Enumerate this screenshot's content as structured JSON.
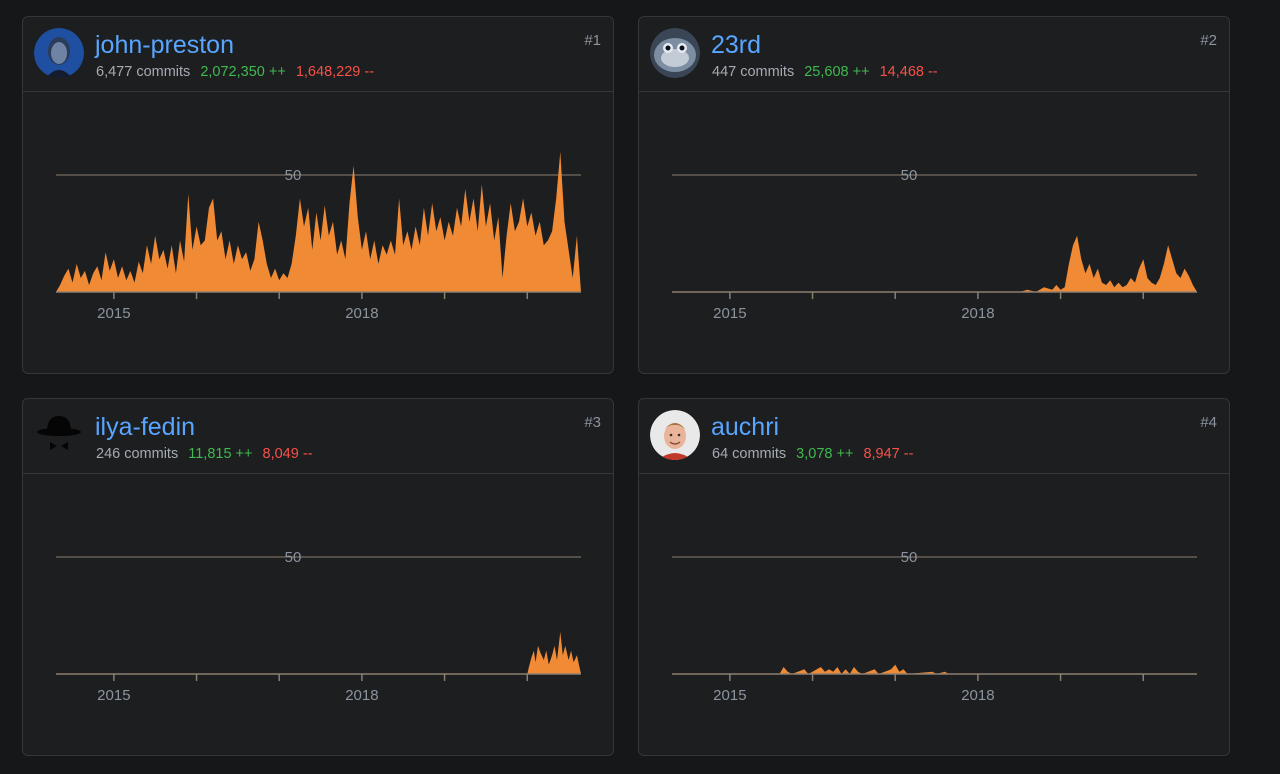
{
  "cards": [
    {
      "rank": "#1",
      "username": "john-preston",
      "commits": "6,477 commits",
      "additions": "2,072,350 ++",
      "deletions": "1,648,229 --",
      "avatar": "profile-photo-icon",
      "chart_data": {
        "type": "area",
        "y_gridline_label": "50",
        "x_tick_labels": [
          "2015",
          "2018"
        ],
        "start": 2014.3,
        "end": 2020.65,
        "ylim": [
          0,
          64
        ],
        "points": [
          [
            2014.3,
            0
          ],
          [
            2014.35,
            3
          ],
          [
            2014.4,
            7
          ],
          [
            2014.45,
            10
          ],
          [
            2014.5,
            4
          ],
          [
            2014.55,
            12
          ],
          [
            2014.6,
            6
          ],
          [
            2014.65,
            9
          ],
          [
            2014.7,
            3
          ],
          [
            2014.75,
            8
          ],
          [
            2014.8,
            11
          ],
          [
            2014.85,
            5
          ],
          [
            2014.9,
            17
          ],
          [
            2014.95,
            9
          ],
          [
            2015.0,
            14
          ],
          [
            2015.05,
            6
          ],
          [
            2015.1,
            11
          ],
          [
            2015.15,
            5
          ],
          [
            2015.2,
            9
          ],
          [
            2015.25,
            4
          ],
          [
            2015.3,
            13
          ],
          [
            2015.35,
            8
          ],
          [
            2015.4,
            20
          ],
          [
            2015.45,
            12
          ],
          [
            2015.5,
            24
          ],
          [
            2015.55,
            14
          ],
          [
            2015.6,
            18
          ],
          [
            2015.65,
            10
          ],
          [
            2015.7,
            20
          ],
          [
            2015.75,
            8
          ],
          [
            2015.8,
            22
          ],
          [
            2015.85,
            13
          ],
          [
            2015.9,
            42
          ],
          [
            2015.95,
            18
          ],
          [
            2016.0,
            28
          ],
          [
            2016.05,
            20
          ],
          [
            2016.1,
            22
          ],
          [
            2016.15,
            36
          ],
          [
            2016.2,
            40
          ],
          [
            2016.25,
            22
          ],
          [
            2016.3,
            26
          ],
          [
            2016.35,
            14
          ],
          [
            2016.4,
            22
          ],
          [
            2016.45,
            12
          ],
          [
            2016.5,
            20
          ],
          [
            2016.55,
            14
          ],
          [
            2016.6,
            17
          ],
          [
            2016.65,
            9
          ],
          [
            2016.7,
            14
          ],
          [
            2016.75,
            30
          ],
          [
            2016.8,
            22
          ],
          [
            2016.85,
            12
          ],
          [
            2016.9,
            6
          ],
          [
            2016.95,
            10
          ],
          [
            2017.0,
            5
          ],
          [
            2017.05,
            8
          ],
          [
            2017.1,
            6
          ],
          [
            2017.15,
            12
          ],
          [
            2017.2,
            24
          ],
          [
            2017.25,
            40
          ],
          [
            2017.3,
            28
          ],
          [
            2017.35,
            36
          ],
          [
            2017.4,
            18
          ],
          [
            2017.45,
            34
          ],
          [
            2017.5,
            22
          ],
          [
            2017.55,
            37
          ],
          [
            2017.6,
            24
          ],
          [
            2017.65,
            30
          ],
          [
            2017.7,
            16
          ],
          [
            2017.75,
            22
          ],
          [
            2017.8,
            14
          ],
          [
            2017.85,
            38
          ],
          [
            2017.9,
            54
          ],
          [
            2017.95,
            32
          ],
          [
            2018.0,
            18
          ],
          [
            2018.05,
            26
          ],
          [
            2018.1,
            14
          ],
          [
            2018.15,
            22
          ],
          [
            2018.2,
            12
          ],
          [
            2018.25,
            20
          ],
          [
            2018.3,
            16
          ],
          [
            2018.35,
            22
          ],
          [
            2018.4,
            16
          ],
          [
            2018.45,
            40
          ],
          [
            2018.5,
            20
          ],
          [
            2018.55,
            26
          ],
          [
            2018.6,
            18
          ],
          [
            2018.65,
            28
          ],
          [
            2018.7,
            20
          ],
          [
            2018.75,
            36
          ],
          [
            2018.8,
            24
          ],
          [
            2018.85,
            38
          ],
          [
            2018.9,
            26
          ],
          [
            2018.95,
            32
          ],
          [
            2019.0,
            22
          ],
          [
            2019.05,
            30
          ],
          [
            2019.1,
            24
          ],
          [
            2019.15,
            36
          ],
          [
            2019.2,
            28
          ],
          [
            2019.25,
            44
          ],
          [
            2019.3,
            30
          ],
          [
            2019.35,
            40
          ],
          [
            2019.4,
            26
          ],
          [
            2019.45,
            46
          ],
          [
            2019.5,
            28
          ],
          [
            2019.55,
            38
          ],
          [
            2019.6,
            22
          ],
          [
            2019.65,
            32
          ],
          [
            2019.7,
            6
          ],
          [
            2019.75,
            24
          ],
          [
            2019.8,
            38
          ],
          [
            2019.85,
            26
          ],
          [
            2019.9,
            30
          ],
          [
            2019.95,
            40
          ],
          [
            2020.0,
            28
          ],
          [
            2020.05,
            34
          ],
          [
            2020.1,
            24
          ],
          [
            2020.15,
            30
          ],
          [
            2020.2,
            20
          ],
          [
            2020.25,
            22
          ],
          [
            2020.3,
            26
          ],
          [
            2020.35,
            40
          ],
          [
            2020.4,
            60
          ],
          [
            2020.45,
            30
          ],
          [
            2020.5,
            18
          ],
          [
            2020.55,
            6
          ],
          [
            2020.6,
            24
          ],
          [
            2020.65,
            0
          ]
        ]
      }
    },
    {
      "rank": "#2",
      "username": "23rd",
      "commits": "447 commits",
      "additions": "25,608 ++",
      "deletions": "14,468 --",
      "avatar": "blue-creature-icon",
      "chart_data": {
        "type": "area",
        "y_gridline_label": "50",
        "x_tick_labels": [
          "2015",
          "2018"
        ],
        "start": 2014.3,
        "end": 2020.65,
        "ylim": [
          0,
          64
        ],
        "points": [
          [
            2014.3,
            0
          ],
          [
            2018.5,
            0
          ],
          [
            2018.6,
            1
          ],
          [
            2018.7,
            0
          ],
          [
            2018.8,
            2
          ],
          [
            2018.9,
            1
          ],
          [
            2018.95,
            3
          ],
          [
            2019.0,
            1
          ],
          [
            2019.05,
            2
          ],
          [
            2019.1,
            12
          ],
          [
            2019.15,
            20
          ],
          [
            2019.2,
            24
          ],
          [
            2019.25,
            14
          ],
          [
            2019.3,
            8
          ],
          [
            2019.35,
            12
          ],
          [
            2019.4,
            6
          ],
          [
            2019.45,
            10
          ],
          [
            2019.5,
            4
          ],
          [
            2019.55,
            3
          ],
          [
            2019.6,
            5
          ],
          [
            2019.65,
            2
          ],
          [
            2019.7,
            4
          ],
          [
            2019.75,
            2
          ],
          [
            2019.8,
            3
          ],
          [
            2019.85,
            6
          ],
          [
            2019.9,
            4
          ],
          [
            2019.95,
            10
          ],
          [
            2020.0,
            14
          ],
          [
            2020.05,
            6
          ],
          [
            2020.1,
            4
          ],
          [
            2020.15,
            3
          ],
          [
            2020.2,
            6
          ],
          [
            2020.25,
            12
          ],
          [
            2020.3,
            20
          ],
          [
            2020.35,
            14
          ],
          [
            2020.4,
            8
          ],
          [
            2020.45,
            6
          ],
          [
            2020.5,
            10
          ],
          [
            2020.55,
            7
          ],
          [
            2020.6,
            3
          ],
          [
            2020.65,
            0
          ]
        ]
      }
    },
    {
      "rank": "#3",
      "username": "ilya-fedin",
      "commits": "246 commits",
      "additions": "11,815 ++",
      "deletions": "8,049 --",
      "avatar": "bowler-hat-icon",
      "chart_data": {
        "type": "area",
        "y_gridline_label": "50",
        "x_tick_labels": [
          "2015",
          "2018"
        ],
        "start": 2014.3,
        "end": 2020.65,
        "ylim": [
          0,
          64
        ],
        "points": [
          [
            2014.3,
            0
          ],
          [
            2020.0,
            0
          ],
          [
            2020.02,
            3
          ],
          [
            2020.05,
            7
          ],
          [
            2020.08,
            10
          ],
          [
            2020.1,
            5
          ],
          [
            2020.13,
            12
          ],
          [
            2020.16,
            9
          ],
          [
            2020.2,
            6
          ],
          [
            2020.23,
            10
          ],
          [
            2020.26,
            4
          ],
          [
            2020.3,
            8
          ],
          [
            2020.33,
            12
          ],
          [
            2020.36,
            6
          ],
          [
            2020.4,
            18
          ],
          [
            2020.43,
            8
          ],
          [
            2020.46,
            12
          ],
          [
            2020.5,
            6
          ],
          [
            2020.53,
            10
          ],
          [
            2020.56,
            5
          ],
          [
            2020.6,
            8
          ],
          [
            2020.65,
            0
          ]
        ]
      }
    },
    {
      "rank": "#4",
      "username": "auchri",
      "commits": "64 commits",
      "additions": "3,078 ++",
      "deletions": "8,947 --",
      "avatar": "person-photo-icon",
      "chart_data": {
        "type": "area",
        "y_gridline_label": "50",
        "x_tick_labels": [
          "2015",
          "2018"
        ],
        "start": 2014.3,
        "end": 2020.65,
        "ylim": [
          0,
          64
        ],
        "points": [
          [
            2014.3,
            0
          ],
          [
            2015.6,
            0
          ],
          [
            2015.65,
            3
          ],
          [
            2015.7,
            1
          ],
          [
            2015.75,
            0
          ],
          [
            2015.9,
            2
          ],
          [
            2015.95,
            0
          ],
          [
            2016.1,
            3
          ],
          [
            2016.15,
            1
          ],
          [
            2016.2,
            2
          ],
          [
            2016.25,
            1
          ],
          [
            2016.3,
            3
          ],
          [
            2016.35,
            0
          ],
          [
            2016.4,
            2
          ],
          [
            2016.45,
            0
          ],
          [
            2016.5,
            3
          ],
          [
            2016.55,
            1
          ],
          [
            2016.6,
            0
          ],
          [
            2016.75,
            2
          ],
          [
            2016.8,
            0
          ],
          [
            2016.95,
            2
          ],
          [
            2017.0,
            4
          ],
          [
            2017.05,
            1
          ],
          [
            2017.1,
            2
          ],
          [
            2017.15,
            0
          ],
          [
            2017.45,
            1
          ],
          [
            2017.5,
            0
          ],
          [
            2017.6,
            1
          ],
          [
            2017.65,
            0
          ],
          [
            2020.65,
            0
          ]
        ]
      }
    }
  ],
  "colors": {
    "area_fill": "#f08a35",
    "gridline": "#8b7f70",
    "axis": "#8b7f70",
    "tick_label": "#8b949e",
    "link": "#58a6ff",
    "addition": "#3fb950",
    "deletion": "#f85149"
  }
}
